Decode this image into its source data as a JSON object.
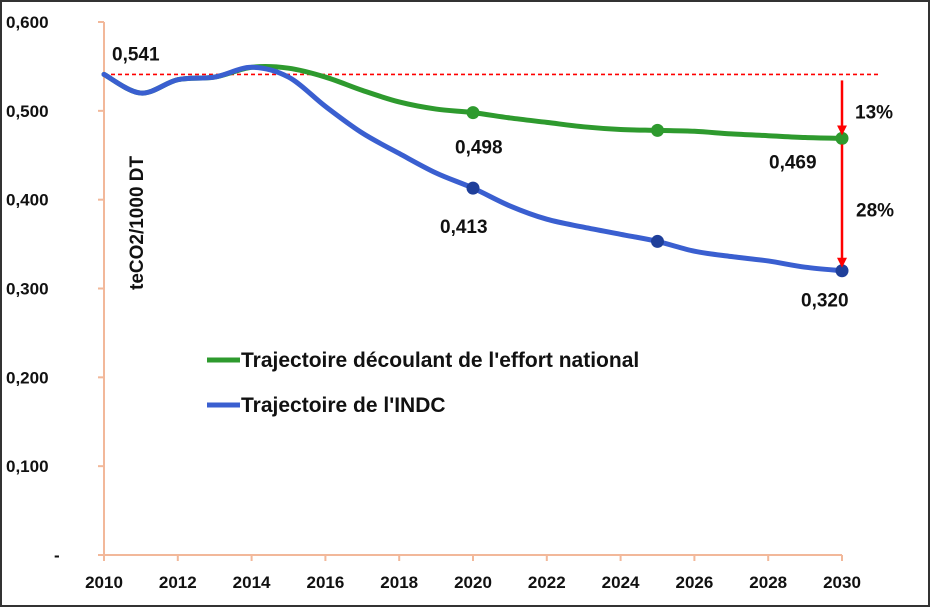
{
  "chart_data": {
    "type": "line",
    "title": "",
    "xlabel": "",
    "ylabel": "teCO2/1000 DT",
    "xlim": [
      2010,
      2030
    ],
    "ylim": [
      0,
      0.6
    ],
    "y_ticks": [
      {
        "value": 0,
        "label": "-"
      },
      {
        "value": 0.1,
        "label": "0,100"
      },
      {
        "value": 0.2,
        "label": "0,200"
      },
      {
        "value": 0.3,
        "label": "0,300"
      },
      {
        "value": 0.4,
        "label": "0,400"
      },
      {
        "value": 0.5,
        "label": "0,500"
      },
      {
        "value": 0.6,
        "label": "0,600"
      }
    ],
    "x_ticks": [
      "2010",
      "2012",
      "2014",
      "2016",
      "2018",
      "2020",
      "2022",
      "2024",
      "2026",
      "2028",
      "2030"
    ],
    "reference_line": {
      "value": 0.541,
      "label": "0,541",
      "color": "#ff0000"
    },
    "series": [
      {
        "name": "Trajectoire découlant de l'effort national",
        "color": "#2e9a2e",
        "x": [
          2010,
          2011,
          2012,
          2013,
          2014,
          2015,
          2016,
          2017,
          2018,
          2019,
          2020,
          2021,
          2022,
          2023,
          2024,
          2025,
          2026,
          2027,
          2028,
          2029,
          2030
        ],
        "values": [
          0.541,
          0.52,
          0.535,
          0.538,
          0.549,
          0.548,
          0.538,
          0.523,
          0.51,
          0.502,
          0.498,
          0.492,
          0.487,
          0.482,
          0.479,
          0.478,
          0.477,
          0.474,
          0.472,
          0.47,
          0.469
        ],
        "markers": [
          {
            "x": 2020,
            "value": 0.498,
            "label": "0,498"
          },
          {
            "x": 2025,
            "value": 0.478
          },
          {
            "x": 2030,
            "value": 0.469,
            "label": "0,469"
          }
        ]
      },
      {
        "name": "Trajectoire de l'INDC",
        "color": "#3a5fd0",
        "x": [
          2010,
          2011,
          2012,
          2013,
          2014,
          2015,
          2016,
          2017,
          2018,
          2019,
          2020,
          2021,
          2022,
          2023,
          2024,
          2025,
          2026,
          2027,
          2028,
          2029,
          2030
        ],
        "values": [
          0.541,
          0.52,
          0.535,
          0.538,
          0.549,
          0.538,
          0.505,
          0.475,
          0.452,
          0.43,
          0.413,
          0.393,
          0.378,
          0.369,
          0.361,
          0.353,
          0.342,
          0.336,
          0.331,
          0.324,
          0.32
        ],
        "markers": [
          {
            "x": 2020,
            "value": 0.413,
            "label": "0,413"
          },
          {
            "x": 2025,
            "value": 0.353
          },
          {
            "x": 2030,
            "value": 0.32,
            "label": "0,320"
          }
        ]
      }
    ],
    "annotations": [
      {
        "text": "13%",
        "color": "#2e9a2e",
        "from": 0.541,
        "to": 0.469,
        "x": 2030
      },
      {
        "text": "28%",
        "color": "#2a63c6",
        "from": 0.469,
        "to": 0.32,
        "x": 2030
      }
    ],
    "legend": {
      "placement": "center",
      "entries": [
        "Trajectoire découlant de l'effort national",
        "Trajectoire de l'INDC"
      ]
    },
    "grid": false,
    "colors": {
      "axis": "#f2b89a",
      "tick_mark": "#f2b89a"
    }
  }
}
